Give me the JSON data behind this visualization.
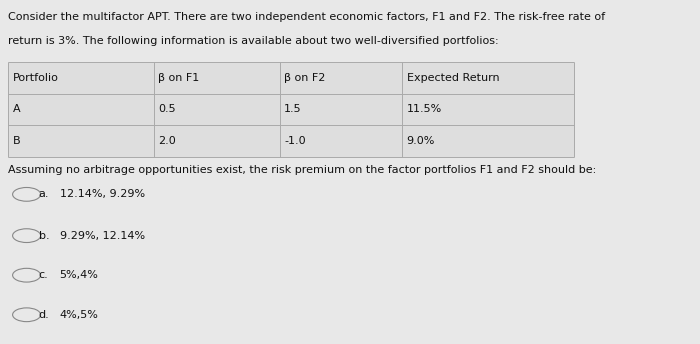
{
  "background_color": "#e8e8e8",
  "table_bg": "#e0e0e0",
  "text_color": "#111111",
  "intro_text_line1": "Consider the multifactor APT. There are two independent economic factors, F1 and F2. The risk-free rate of",
  "intro_text_line2": "return is 3%. The following information is available about two well-diversified portfolios:",
  "table_headers": [
    "Portfolio",
    "β on F1",
    "β on F2",
    "Expected Return"
  ],
  "table_rows": [
    [
      "A",
      "0.5",
      "1.5",
      "11.5%"
    ],
    [
      "B",
      "2.0",
      "-1.0",
      "9.0%"
    ]
  ],
  "question_text": "Assuming no arbitrage opportunities exist, the risk premium on the factor portfolios F1 and F2 should be:",
  "option_labels": [
    "a.",
    "b.",
    "c.",
    "d."
  ],
  "option_texts": [
    "12.14%, 9.29%",
    "9.29%, 12.14%",
    "5%,4%",
    "4%,5%"
  ],
  "font_size": 8.0,
  "table_line_color": "#aaaaaa",
  "circle_color": "#888888"
}
